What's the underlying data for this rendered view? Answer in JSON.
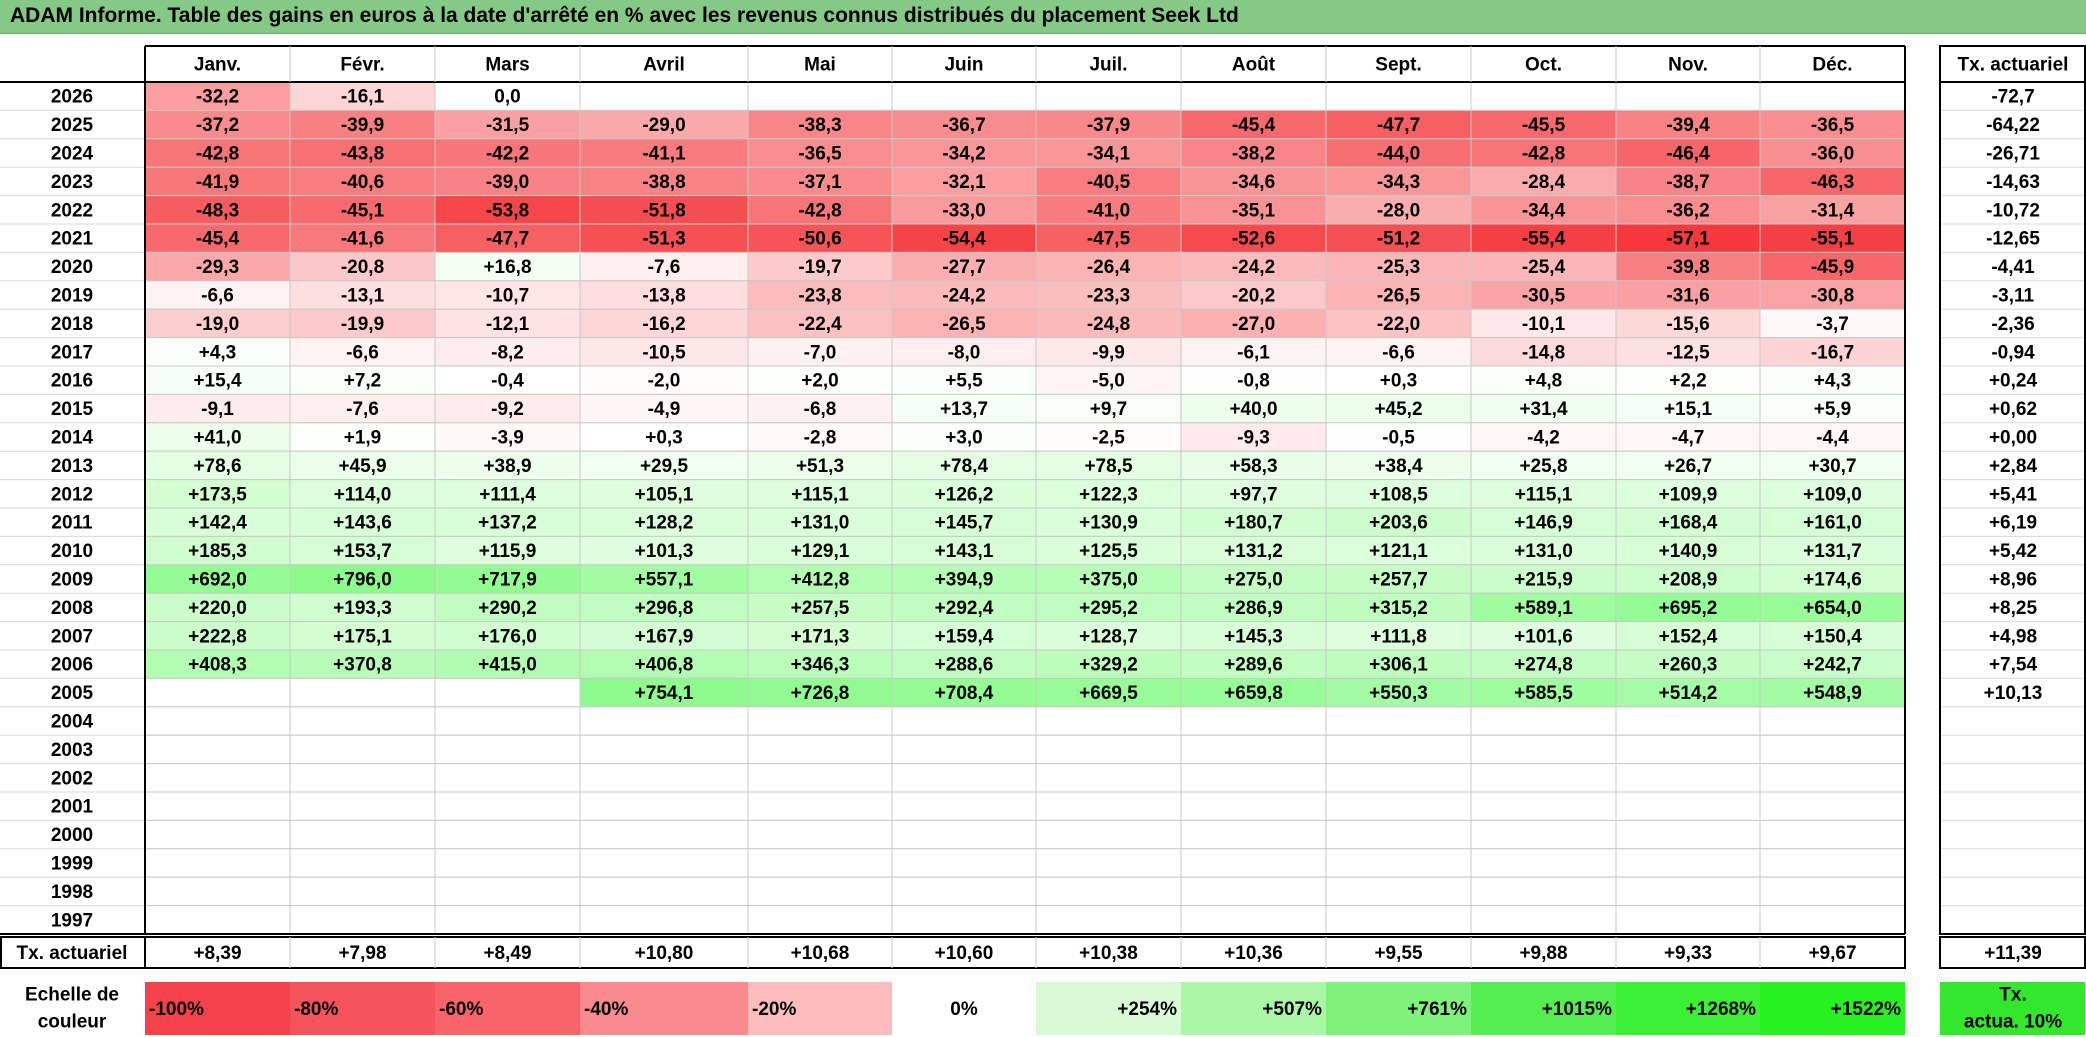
{
  "title": "ADAM Informe. Table des gains en euros à la date d'arrêté en % avec les revenus connus distribués du placement Seek Ltd",
  "chart_data": {
    "type": "heatmap",
    "months": [
      "Janv.",
      "Févr.",
      "Mars",
      "Avril",
      "Mai",
      "Juin",
      "Juil.",
      "Août",
      "Sept.",
      "Oct.",
      "Nov.",
      "Déc."
    ],
    "right_header": "Tx. actuariel",
    "rows": [
      {
        "year": "2026",
        "values": [
          "-32,2",
          "-16,1",
          "0,0",
          "",
          "",
          "",
          "",
          "",
          "",
          "",
          "",
          ""
        ],
        "rate": "-72,7"
      },
      {
        "year": "2025",
        "values": [
          "-37,2",
          "-39,9",
          "-31,5",
          "-29,0",
          "-38,3",
          "-36,7",
          "-37,9",
          "-45,4",
          "-47,7",
          "-45,5",
          "-39,4",
          "-36,5"
        ],
        "rate": "-64,22"
      },
      {
        "year": "2024",
        "values": [
          "-42,8",
          "-43,8",
          "-42,2",
          "-41,1",
          "-36,5",
          "-34,2",
          "-34,1",
          "-38,2",
          "-44,0",
          "-42,8",
          "-46,4",
          "-36,0"
        ],
        "rate": "-26,71"
      },
      {
        "year": "2023",
        "values": [
          "-41,9",
          "-40,6",
          "-39,0",
          "-38,8",
          "-37,1",
          "-32,1",
          "-40,5",
          "-34,6",
          "-34,3",
          "-28,4",
          "-38,7",
          "-46,3"
        ],
        "rate": "-14,63"
      },
      {
        "year": "2022",
        "values": [
          "-48,3",
          "-45,1",
          "-53,8",
          "-51,8",
          "-42,8",
          "-33,0",
          "-41,0",
          "-35,1",
          "-28,0",
          "-34,4",
          "-36,2",
          "-31,4"
        ],
        "rate": "-10,72"
      },
      {
        "year": "2021",
        "values": [
          "-45,4",
          "-41,6",
          "-47,7",
          "-51,3",
          "-50,6",
          "-54,4",
          "-47,5",
          "-52,6",
          "-51,2",
          "-55,4",
          "-57,1",
          "-55,1"
        ],
        "rate": "-12,65"
      },
      {
        "year": "2020",
        "values": [
          "-29,3",
          "-20,8",
          "+16,8",
          "-7,6",
          "-19,7",
          "-27,7",
          "-26,4",
          "-24,2",
          "-25,3",
          "-25,4",
          "-39,8",
          "-45,9"
        ],
        "rate": "-4,41"
      },
      {
        "year": "2019",
        "values": [
          "-6,6",
          "-13,1",
          "-10,7",
          "-13,8",
          "-23,8",
          "-24,2",
          "-23,3",
          "-20,2",
          "-26,5",
          "-30,5",
          "-31,6",
          "-30,8"
        ],
        "rate": "-3,11"
      },
      {
        "year": "2018",
        "values": [
          "-19,0",
          "-19,9",
          "-12,1",
          "-16,2",
          "-22,4",
          "-26,5",
          "-24,8",
          "-27,0",
          "-22,0",
          "-10,1",
          "-15,6",
          "-3,7"
        ],
        "rate": "-2,36"
      },
      {
        "year": "2017",
        "values": [
          "+4,3",
          "-6,6",
          "-8,2",
          "-10,5",
          "-7,0",
          "-8,0",
          "-9,9",
          "-6,1",
          "-6,6",
          "-14,8",
          "-12,5",
          "-16,7"
        ],
        "rate": "-0,94"
      },
      {
        "year": "2016",
        "values": [
          "+15,4",
          "+7,2",
          "-0,4",
          "-2,0",
          "+2,0",
          "+5,5",
          "-5,0",
          "-0,8",
          "+0,3",
          "+4,8",
          "+2,2",
          "+4,3"
        ],
        "rate": "+0,24"
      },
      {
        "year": "2015",
        "values": [
          "-9,1",
          "-7,6",
          "-9,2",
          "-4,9",
          "-6,8",
          "+13,7",
          "+9,7",
          "+40,0",
          "+45,2",
          "+31,4",
          "+15,1",
          "+5,9"
        ],
        "rate": "+0,62"
      },
      {
        "year": "2014",
        "values": [
          "+41,0",
          "+1,9",
          "-3,9",
          "+0,3",
          "-2,8",
          "+3,0",
          "-2,5",
          "-9,3",
          "-0,5",
          "-4,2",
          "-4,7",
          "-4,4"
        ],
        "rate": "+0,00"
      },
      {
        "year": "2013",
        "values": [
          "+78,6",
          "+45,9",
          "+38,9",
          "+29,5",
          "+51,3",
          "+78,4",
          "+78,5",
          "+58,3",
          "+38,4",
          "+25,8",
          "+26,7",
          "+30,7"
        ],
        "rate": "+2,84"
      },
      {
        "year": "2012",
        "values": [
          "+173,5",
          "+114,0",
          "+111,4",
          "+105,1",
          "+115,1",
          "+126,2",
          "+122,3",
          "+97,7",
          "+108,5",
          "+115,1",
          "+109,9",
          "+109,0"
        ],
        "rate": "+5,41"
      },
      {
        "year": "2011",
        "values": [
          "+142,4",
          "+143,6",
          "+137,2",
          "+128,2",
          "+131,0",
          "+145,7",
          "+130,9",
          "+180,7",
          "+203,6",
          "+146,9",
          "+168,4",
          "+161,0"
        ],
        "rate": "+6,19"
      },
      {
        "year": "2010",
        "values": [
          "+185,3",
          "+153,7",
          "+115,9",
          "+101,3",
          "+129,1",
          "+143,1",
          "+125,5",
          "+131,2",
          "+121,1",
          "+131,0",
          "+140,9",
          "+131,7"
        ],
        "rate": "+5,42"
      },
      {
        "year": "2009",
        "values": [
          "+692,0",
          "+796,0",
          "+717,9",
          "+557,1",
          "+412,8",
          "+394,9",
          "+375,0",
          "+275,0",
          "+257,7",
          "+215,9",
          "+208,9",
          "+174,6"
        ],
        "rate": "+8,96"
      },
      {
        "year": "2008",
        "values": [
          "+220,0",
          "+193,3",
          "+290,2",
          "+296,8",
          "+257,5",
          "+292,4",
          "+295,2",
          "+286,9",
          "+315,2",
          "+589,1",
          "+695,2",
          "+654,0"
        ],
        "rate": "+8,25"
      },
      {
        "year": "2007",
        "values": [
          "+222,8",
          "+175,1",
          "+176,0",
          "+167,9",
          "+171,3",
          "+159,4",
          "+128,7",
          "+145,3",
          "+111,8",
          "+101,6",
          "+152,4",
          "+150,4"
        ],
        "rate": "+4,98"
      },
      {
        "year": "2006",
        "values": [
          "+408,3",
          "+370,8",
          "+415,0",
          "+406,8",
          "+346,3",
          "+288,6",
          "+329,2",
          "+289,6",
          "+306,1",
          "+274,8",
          "+260,3",
          "+242,7"
        ],
        "rate": "+7,54"
      },
      {
        "year": "2005",
        "values": [
          "",
          "",
          "",
          "+754,1",
          "+726,8",
          "+708,4",
          "+669,5",
          "+659,8",
          "+550,3",
          "+585,5",
          "+514,2",
          "+548,9"
        ],
        "rate": "+10,13"
      },
      {
        "year": "2004",
        "values": [
          "",
          "",
          "",
          "",
          "",
          "",
          "",
          "",
          "",
          "",
          "",
          ""
        ],
        "rate": ""
      },
      {
        "year": "2003",
        "values": [
          "",
          "",
          "",
          "",
          "",
          "",
          "",
          "",
          "",
          "",
          "",
          ""
        ],
        "rate": ""
      },
      {
        "year": "2002",
        "values": [
          "",
          "",
          "",
          "",
          "",
          "",
          "",
          "",
          "",
          "",
          "",
          ""
        ],
        "rate": ""
      },
      {
        "year": "2001",
        "values": [
          "",
          "",
          "",
          "",
          "",
          "",
          "",
          "",
          "",
          "",
          "",
          ""
        ],
        "rate": ""
      },
      {
        "year": "2000",
        "values": [
          "",
          "",
          "",
          "",
          "",
          "",
          "",
          "",
          "",
          "",
          "",
          ""
        ],
        "rate": ""
      },
      {
        "year": "1999",
        "values": [
          "",
          "",
          "",
          "",
          "",
          "",
          "",
          "",
          "",
          "",
          "",
          ""
        ],
        "rate": ""
      },
      {
        "year": "1998",
        "values": [
          "",
          "",
          "",
          "",
          "",
          "",
          "",
          "",
          "",
          "",
          "",
          ""
        ],
        "rate": ""
      },
      {
        "year": "1997",
        "values": [
          "",
          "",
          "",
          "",
          "",
          "",
          "",
          "",
          "",
          "",
          "",
          ""
        ],
        "rate": ""
      }
    ],
    "footer": {
      "label": "Tx. actuariel",
      "values": [
        "+8,39",
        "+7,98",
        "+8,49",
        "+10,80",
        "+10,68",
        "+10,60",
        "+10,38",
        "+10,36",
        "+9,55",
        "+9,88",
        "+9,33",
        "+9,67"
      ],
      "rate": "+11,39"
    },
    "color_scale": {
      "label_line1": "Echelle de",
      "label_line2": "couleur",
      "steps": [
        {
          "text": "-100%",
          "color": "#f4424b"
        },
        {
          "text": "-80%",
          "color": "#f5535b"
        },
        {
          "text": "-60%",
          "color": "#f7646a"
        },
        {
          "text": "-40%",
          "color": "#f98a8d"
        },
        {
          "text": "-20%",
          "color": "#fcbcbd"
        },
        {
          "text": "0%",
          "color": "#ffffff"
        },
        {
          "text": "+254%",
          "color": "#d8fbd6"
        },
        {
          "text": "+507%",
          "color": "#a9f7a7"
        },
        {
          "text": "+761%",
          "color": "#7ef27a"
        },
        {
          "text": "+1015%",
          "color": "#55ee50"
        },
        {
          "text": "+1268%",
          "color": "#3cf036"
        },
        {
          "text": "+1522%",
          "color": "#27f21f"
        }
      ],
      "legend_line1": "Tx.",
      "legend_line2": "actua. 10%",
      "legend_color": "#33e82c"
    },
    "colors": {
      "negative_strong": "#f4424b",
      "positive_strong": "#27f21f",
      "title_bar": "#85c986"
    }
  }
}
